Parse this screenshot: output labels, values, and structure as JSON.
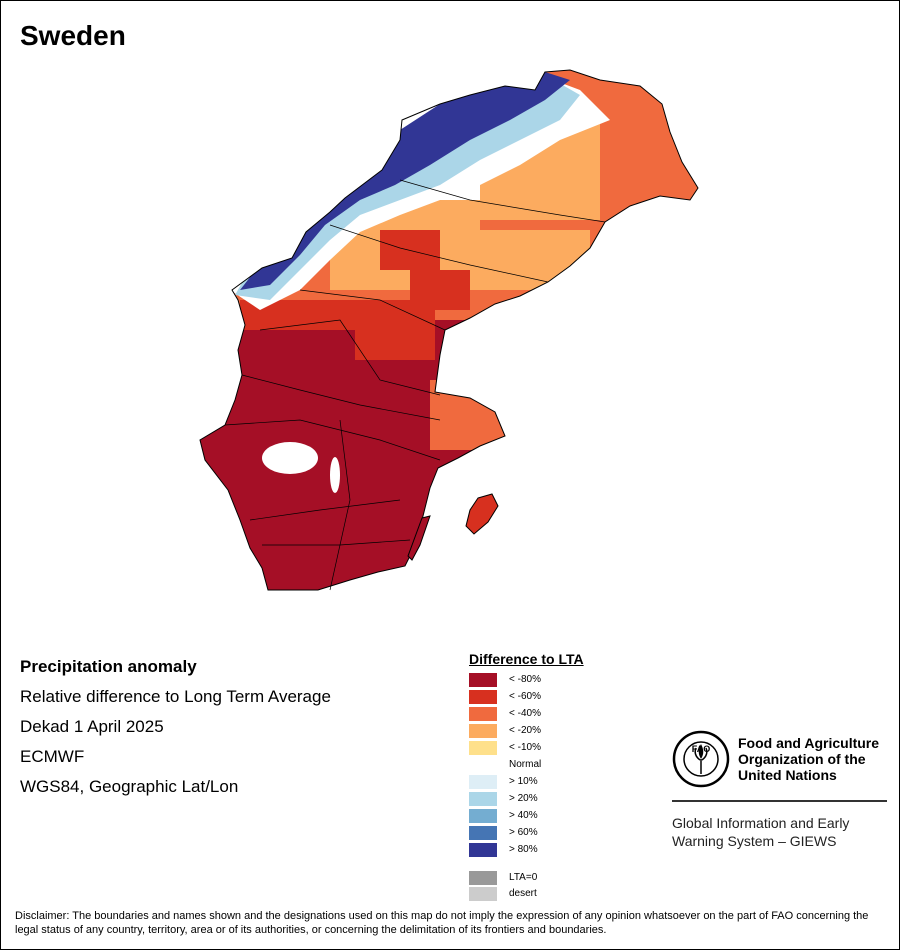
{
  "title": "Sweden",
  "info": {
    "heading": "Precipitation anomaly",
    "line1": "Relative difference to Long Term Average",
    "line2": "Dekad 1 April 2025",
    "line3": "ECMWF",
    "line4": "WGS84, Geographic Lat/Lon"
  },
  "legend": {
    "title": "Difference to LTA",
    "items": [
      {
        "label": "< -80%",
        "color": "#a50f26"
      },
      {
        "label": "< -60%",
        "color": "#d7301f"
      },
      {
        "label": "< -40%",
        "color": "#f06a3e"
      },
      {
        "label": "< -20%",
        "color": "#fcab5f"
      },
      {
        "label": "< -10%",
        "color": "#fee08b"
      },
      {
        "label": "Normal",
        "color": "#ffffff"
      },
      {
        "label": "> 10%",
        "color": "#deeef6"
      },
      {
        "label": "> 20%",
        "color": "#abd6e8"
      },
      {
        "label": "> 40%",
        "color": "#74add1"
      },
      {
        "label": "> 60%",
        "color": "#4575b4"
      },
      {
        "label": "> 80%",
        "color": "#313695"
      },
      {
        "label": "LTA=0",
        "color": "#999999"
      },
      {
        "label": "desert",
        "color": "#cccccc"
      }
    ]
  },
  "org": {
    "name_line1": "Food and Agriculture",
    "name_line2": "Organization of the",
    "name_line3": "United Nations",
    "logo_text": "FAO",
    "logo_ring_text": "FIAT PANIS",
    "system_line1": "Global Information and Early",
    "system_line2": "Warning System – GIEWS"
  },
  "disclaimer": "Disclaimer: The boundaries and names shown and the designations used on this map do not imply the expression of any opinion whatsoever on the part of FAO concerning the legal status of any country, territory, area or of its authorities, or concerning the delimitation of its frontiers and boundaries."
}
